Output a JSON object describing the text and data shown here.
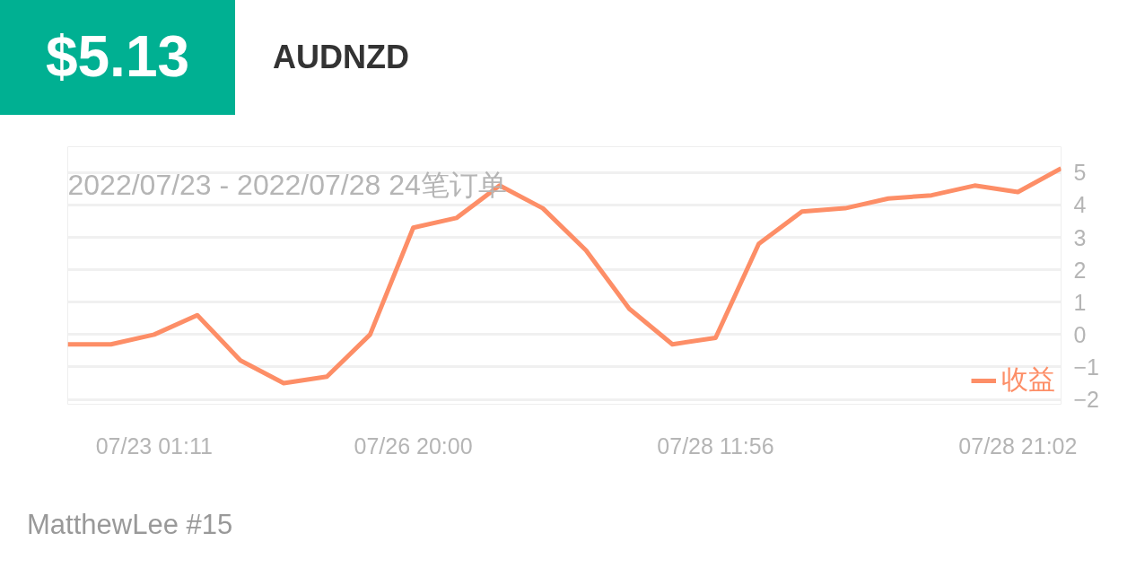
{
  "chart_data": {
    "type": "line",
    "title": "AUDNZD",
    "subtitle": "2022/07/23 - 2022/07/28  24笔订单",
    "annotations": [
      "$5.13",
      "MatthewLee #15"
    ],
    "categories": [
      null,
      null,
      "07/23 01:11",
      null,
      null,
      null,
      null,
      null,
      "07/26 20:00",
      null,
      null,
      null,
      null,
      null,
      null,
      "07/28 11:56",
      null,
      null,
      null,
      null,
      null,
      null,
      "07/28 21:02",
      null
    ],
    "series": [
      {
        "name": "收益",
        "color": "#fd8e67",
        "values": [
          -0.3,
          -0.3,
          0.0,
          0.6,
          -0.8,
          -1.5,
          -1.3,
          0.0,
          3.3,
          3.6,
          4.6,
          3.9,
          2.6,
          0.8,
          -0.3,
          -0.1,
          2.8,
          3.8,
          3.9,
          4.2,
          4.3,
          4.6,
          4.4,
          5.13
        ]
      }
    ],
    "ylim": [
      -2.15,
      5.8
    ],
    "yticks": [
      -2,
      -1,
      0,
      1,
      2,
      3,
      4,
      5
    ],
    "grid": "y",
    "legend": "bottom right",
    "marker": "none",
    "line_style": "solid"
  }
}
